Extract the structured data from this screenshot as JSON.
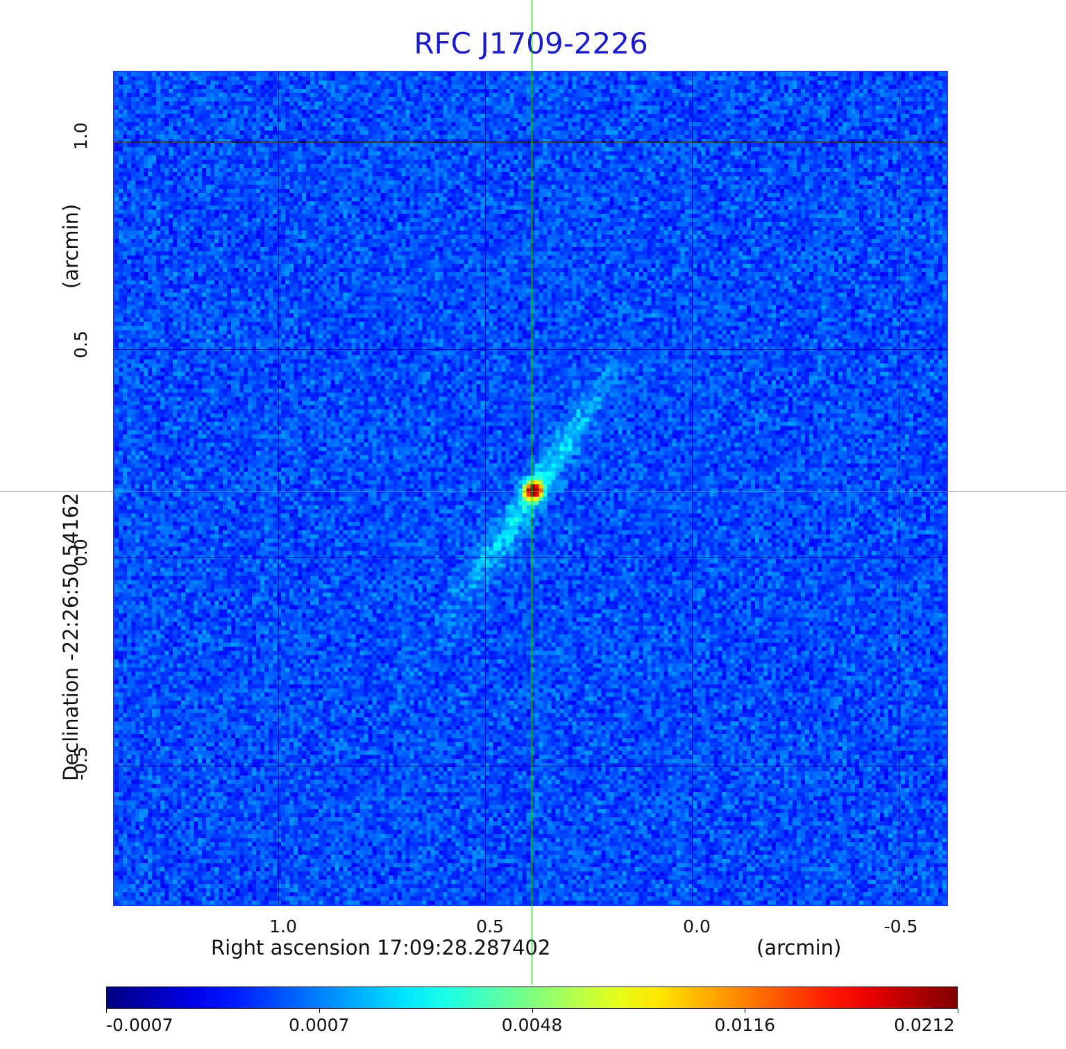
{
  "title": "RFC J1709-2226",
  "x_axis": {
    "label": "Right ascension  17:09:28.287402",
    "unit": "(arcmin)",
    "ticks": [
      "1.0",
      "0.5",
      "0.0",
      "-0.5"
    ]
  },
  "y_axis": {
    "label": "Declination  -22:26:50.54162",
    "unit": "(arcmin)",
    "ticks": [
      "1.0",
      "0.5",
      "0.0",
      "-0.5"
    ]
  },
  "colorbar": {
    "ticks": [
      "-0.0007",
      "0.0007",
      "0.0048",
      "0.0116",
      "0.0212"
    ],
    "colormap": "jet"
  },
  "colors": {
    "title": "#1a1ad0",
    "crosshair": "#2bd42b",
    "frame": "#1e3cf0"
  },
  "image": {
    "source": "RFC J1709-2226",
    "peak_value": 0.0212,
    "min_value": -0.0007
  }
}
